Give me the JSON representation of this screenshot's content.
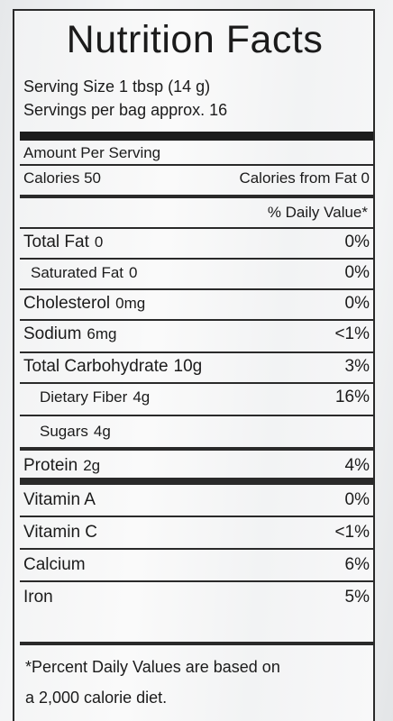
{
  "label": {
    "title": "Nutrition Facts",
    "serving_size": "Serving Size 1 tbsp (14 g)",
    "servings_per": "Servings per bag approx. 16",
    "amount_per_serving": "Amount Per Serving",
    "calories": "Calories 50",
    "calories_from_fat": "Calories from Fat 0",
    "daily_value_header": "% Daily Value*",
    "nutrients": [
      {
        "name": "Total Fat",
        "amount": "0",
        "dv": "0%"
      },
      {
        "name": "Saturated Fat",
        "amount": "0",
        "dv": "0%"
      },
      {
        "name": "Cholesterol",
        "amount": "0mg",
        "dv": "0%"
      },
      {
        "name": "Sodium",
        "amount": "6mg",
        "dv": "<1%"
      },
      {
        "name": "Total Carbohydrate",
        "amount": "10g",
        "dv": "3%"
      },
      {
        "name": "Dietary Fiber",
        "amount": "4g",
        "dv": "16%"
      },
      {
        "name": "Sugars",
        "amount": "4g",
        "dv": ""
      },
      {
        "name": "Protein",
        "amount": "2g",
        "dv": "4%"
      },
      {
        "name": "Vitamin A",
        "amount": "",
        "dv": "0%"
      },
      {
        "name": "Vitamin C",
        "amount": "",
        "dv": "<1%"
      },
      {
        "name": "Calcium",
        "amount": "",
        "dv": "6%"
      },
      {
        "name": "Iron",
        "amount": "",
        "dv": "5%"
      }
    ],
    "footnote_line1": "*Percent Daily Values are based on",
    "footnote_line2": "a 2,000 calorie diet."
  }
}
